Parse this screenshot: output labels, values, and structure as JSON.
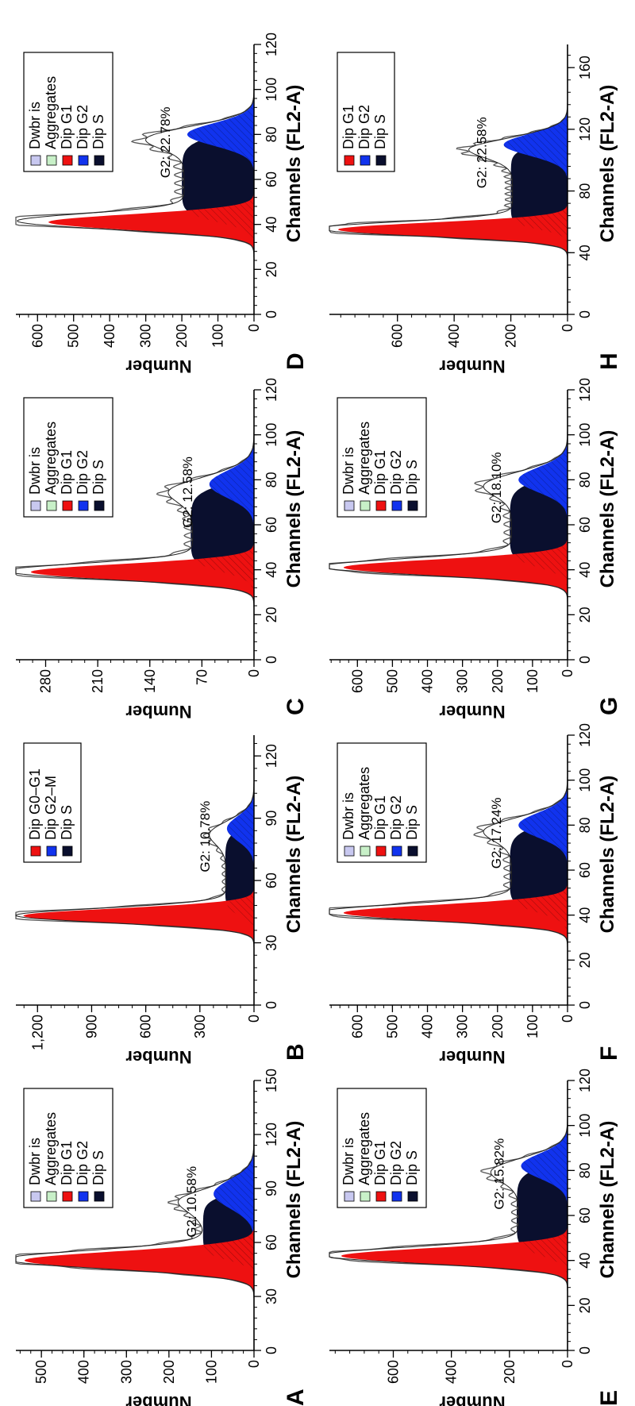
{
  "colors": {
    "dwbr": "#c8c8f0",
    "aggregates": "#c8f0c8",
    "dip_g1": "#ee1111",
    "dip_g2": "#1133ee",
    "dip_s": "#0a0f2e",
    "envelope": "#555555"
  },
  "chart_data": [
    {
      "panel": "A",
      "type": "area",
      "xlabel": "Channels (FL2-A)",
      "ylabel": "Number",
      "xlim": [
        0,
        150
      ],
      "ylim": [
        0,
        560
      ],
      "xticks": [
        0,
        30,
        60,
        90,
        120,
        150
      ],
      "yticks": [
        0,
        100,
        200,
        300,
        400,
        500
      ],
      "ytick_labels": [
        "0",
        "100",
        "200",
        "300",
        "400",
        "500"
      ],
      "g1_peak": 50,
      "g1_height": 540,
      "g1_width": 5,
      "g2_center": 87,
      "g2_height": 95,
      "g2_width": 8,
      "s_start": 50,
      "s_end": 87,
      "s_height": 120,
      "annotation": "G2: 10.58%",
      "legend": [
        "Dwbr is",
        "Aggregates",
        "Dip G1",
        "Dip G2",
        "Dip S"
      ]
    },
    {
      "panel": "B",
      "type": "area",
      "xlabel": "Channels (FL2-A)",
      "ylabel": "Number",
      "xlim": [
        0,
        130
      ],
      "ylim": [
        0,
        1320
      ],
      "xticks": [
        0,
        30,
        60,
        90,
        120
      ],
      "yticks": [
        0,
        300,
        600,
        900,
        1200
      ],
      "ytick_labels": [
        "0",
        "300",
        "600",
        "900",
        "1,200"
      ],
      "g1_peak": 43,
      "g1_height": 1280,
      "g1_width": 3.5,
      "g2_center": 85,
      "g2_height": 150,
      "g2_width": 6,
      "s_start": 43,
      "s_end": 85,
      "s_height": 160,
      "annotation": "G2: 10.78%",
      "legend": [
        "Dip G0–G1",
        "Dip G2–M",
        "Dip S"
      ]
    },
    {
      "panel": "C",
      "type": "area",
      "xlabel": "Channels (FL2-A)",
      "ylabel": "Number",
      "xlim": [
        0,
        120
      ],
      "ylim": [
        0,
        320
      ],
      "xticks": [
        0,
        20,
        40,
        60,
        80,
        100,
        120
      ],
      "yticks": [
        0,
        70,
        140,
        210,
        280
      ],
      "ytick_labels": [
        "0",
        "70",
        "140",
        "210",
        "280"
      ],
      "g1_peak": 39,
      "g1_height": 300,
      "g1_width": 3.5,
      "g2_center": 78,
      "g2_height": 60,
      "g2_width": 6,
      "s_start": 39,
      "s_end": 78,
      "s_height": 85,
      "annotation": "G2: 12.58%",
      "legend": [
        "Dwbr is",
        "Aggregates",
        "Dip G1",
        "Dip G2",
        "Dip S"
      ]
    },
    {
      "panel": "D",
      "type": "area",
      "xlabel": "Channels (FL2-A)",
      "ylabel": "Number",
      "xlim": [
        0,
        120
      ],
      "ylim": [
        0,
        660
      ],
      "xticks": [
        0,
        20,
        40,
        60,
        80,
        100,
        120
      ],
      "yticks": [
        0,
        100,
        200,
        300,
        400,
        500,
        600
      ],
      "ytick_labels": [
        "0",
        "100",
        "200",
        "300",
        "400",
        "500",
        "600"
      ],
      "g1_peak": 41,
      "g1_height": 570,
      "g1_width": 3.5,
      "g2_center": 80,
      "g2_height": 185,
      "g2_width": 5,
      "s_start": 41,
      "s_end": 80,
      "s_height": 200,
      "annotation": "G2: 22.78%",
      "legend": [
        "Dwbr is",
        "Aggregates",
        "Dip G1",
        "Dip G2",
        "Dip S"
      ]
    },
    {
      "panel": "E",
      "type": "area",
      "xlabel": "Channels (FL2-A)",
      "ylabel": "Number",
      "xlim": [
        0,
        120
      ],
      "ylim": [
        0,
        820
      ],
      "xticks": [
        0,
        20,
        40,
        60,
        80,
        100,
        120
      ],
      "yticks": [
        0,
        200,
        400,
        600
      ],
      "ytick_labels": [
        "0",
        "200",
        "400",
        "600"
      ],
      "g1_peak": 42,
      "g1_height": 780,
      "g1_width": 3.5,
      "g2_center": 82,
      "g2_height": 160,
      "g2_width": 5.5,
      "s_start": 42,
      "s_end": 82,
      "s_height": 175,
      "annotation": "G2: 15.82%",
      "legend": [
        "Dwbr is",
        "Aggregates",
        "Dip G1",
        "Dip G2",
        "Dip S"
      ]
    },
    {
      "panel": "F",
      "type": "area",
      "xlabel": "Channels (FL2-A)",
      "ylabel": "Number",
      "xlim": [
        0,
        120
      ],
      "ylim": [
        0,
        680
      ],
      "xticks": [
        0,
        20,
        40,
        60,
        80,
        100,
        120
      ],
      "yticks": [
        0,
        100,
        200,
        300,
        400,
        500,
        600
      ],
      "ytick_labels": [
        "0",
        "100",
        "200",
        "300",
        "400",
        "500",
        "600"
      ],
      "g1_peak": 41,
      "g1_height": 640,
      "g1_width": 3.5,
      "g2_center": 80,
      "g2_height": 140,
      "g2_width": 5.5,
      "s_start": 41,
      "s_end": 80,
      "s_height": 165,
      "annotation": "G2: 17.24%",
      "legend": [
        "Dwbr is",
        "Aggregates",
        "Dip G1",
        "Dip G2",
        "Dip S"
      ]
    },
    {
      "panel": "G",
      "type": "area",
      "xlabel": "Channels (FL2-A)",
      "ylabel": "Number",
      "xlim": [
        0,
        120
      ],
      "ylim": [
        0,
        680
      ],
      "xticks": [
        0,
        20,
        40,
        60,
        80,
        100,
        120
      ],
      "yticks": [
        0,
        100,
        200,
        300,
        400,
        500,
        600
      ],
      "ytick_labels": [
        "0",
        "100",
        "200",
        "300",
        "400",
        "500",
        "600"
      ],
      "g1_peak": 41,
      "g1_height": 640,
      "g1_width": 3.5,
      "g2_center": 80,
      "g2_height": 140,
      "g2_width": 5.5,
      "s_start": 41,
      "s_end": 80,
      "s_height": 165,
      "annotation": "G2: 18.10%",
      "legend": [
        "Dwbr is",
        "Aggregates",
        "Dip G1",
        "Dip G2",
        "Dip S"
      ]
    },
    {
      "panel": "H",
      "type": "area",
      "xlabel": "Channels (FL2-A)",
      "ylabel": "Number",
      "xlim": [
        0,
        175
      ],
      "ylim": [
        0,
        840
      ],
      "xticks": [
        0,
        40,
        80,
        120,
        160
      ],
      "yticks": [
        0,
        200,
        400,
        600
      ],
      "ytick_labels": [
        "0",
        "200",
        "400",
        "600"
      ],
      "g1_peak": 55,
      "g1_height": 810,
      "g1_width": 4.5,
      "g2_center": 110,
      "g2_height": 225,
      "g2_width": 7,
      "s_start": 55,
      "s_end": 110,
      "s_height": 200,
      "annotation": "G2: 22.58%",
      "legend": [
        "Dip G1",
        "Dip G2",
        "Dip S"
      ]
    }
  ]
}
